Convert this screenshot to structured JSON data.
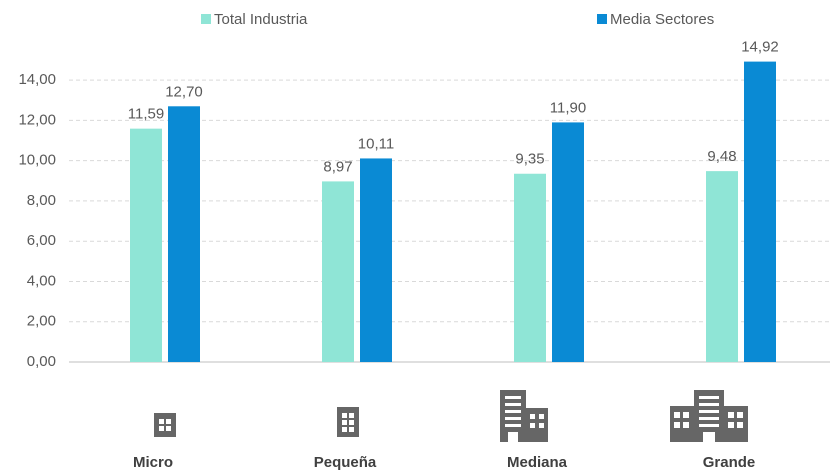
{
  "chart_data": {
    "type": "bar",
    "categories": [
      "Micro",
      "Pequeña",
      "Mediana",
      "Grande"
    ],
    "series": [
      {
        "name": "Total Industria",
        "color": "#8fe5d6",
        "values": [
          11.59,
          8.97,
          9.35,
          9.48
        ],
        "value_labels": [
          "11,59",
          "8,97",
          "9,35",
          "9,48"
        ]
      },
      {
        "name": "Media Sectores",
        "color": "#0a8ad4",
        "values": [
          12.7,
          10.11,
          11.9,
          14.92
        ],
        "value_labels": [
          "12,70",
          "10,11",
          "11,90",
          "14,92"
        ]
      }
    ],
    "ylim": [
      0,
      14.9
    ],
    "yticks": [
      {
        "value": 0,
        "label": "0,00"
      },
      {
        "value": 2,
        "label": "2,00"
      },
      {
        "value": 4,
        "label": "4,00"
      },
      {
        "value": 6,
        "label": "6,00"
      },
      {
        "value": 8,
        "label": "8,00"
      },
      {
        "value": 10,
        "label": "10,00"
      },
      {
        "value": 12,
        "label": "12,00"
      },
      {
        "value": 14,
        "label": "14,00"
      }
    ],
    "grid": true
  }
}
